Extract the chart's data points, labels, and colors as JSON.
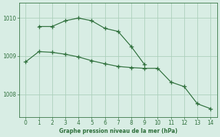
{
  "line1_x": [
    1,
    2,
    3,
    4,
    5,
    6,
    7,
    8,
    9
  ],
  "line1_y": [
    1009.78,
    1009.78,
    1009.93,
    1010.0,
    1009.93,
    1009.73,
    1009.65,
    1009.25,
    1008.78
  ],
  "line2_x": [
    0,
    1,
    2,
    3,
    4,
    5,
    6,
    7,
    8,
    9,
    10,
    11,
    12,
    13,
    14
  ],
  "line2_y": [
    1008.85,
    1009.12,
    1009.1,
    1009.05,
    1008.98,
    1008.88,
    1008.8,
    1008.73,
    1008.7,
    1008.68,
    1008.68,
    1008.32,
    1008.2,
    1007.75,
    1007.62
  ],
  "line_color": "#2d6e3a",
  "bg_color": "#d8ede4",
  "grid_color": "#aacfba",
  "xlabel": "Graphe pression niveau de la mer (hPa)",
  "ylim": [
    1007.4,
    1010.4
  ],
  "xlim": [
    -0.5,
    14.5
  ],
  "yticks": [
    1008,
    1009,
    1010
  ],
  "xticks": [
    0,
    1,
    2,
    3,
    4,
    5,
    6,
    7,
    8,
    9,
    10,
    11,
    12,
    13,
    14
  ]
}
